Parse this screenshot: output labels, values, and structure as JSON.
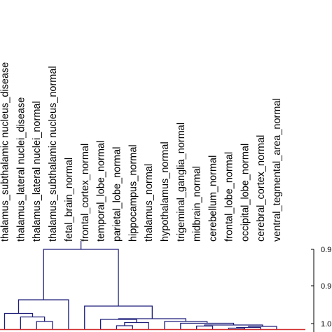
{
  "diagram": {
    "type": "dendrogram",
    "leaves": [
      {
        "label": "thalamus_subthalamic nucleus_disease"
      },
      {
        "label": "thalamus_lateral nuclei_disease"
      },
      {
        "label": "thalamus_lateral nuclei_normal"
      },
      {
        "label": "thalamus_subthalamic nucleus_normal"
      },
      {
        "label": "fetal_brain_normal"
      },
      {
        "label": "frontal_cortex_normal"
      },
      {
        "label": "temporal_lobe_normal"
      },
      {
        "label": "parietal_lobe_normal"
      },
      {
        "label": "hippocampus_normal"
      },
      {
        "label": "thalamus_normal"
      },
      {
        "label": "hypothalamus_normal"
      },
      {
        "label": "trigeminal_ganglia_normal"
      },
      {
        "label": "midbrain_normal"
      },
      {
        "label": "cerebellum_normal"
      },
      {
        "label": "frontal_lobe_normal"
      },
      {
        "label": "occipital_lobe_normal"
      },
      {
        "label": "cerebral_cortex_normal"
      },
      {
        "label": "ventral_tegmental_area_normal"
      }
    ],
    "axis_ticks": [
      "0.9",
      "0.9",
      "1.0"
    ],
    "colors": {
      "tree": "#1f1f7a",
      "baseline": "#d32f2f",
      "text": "#000000"
    }
  }
}
